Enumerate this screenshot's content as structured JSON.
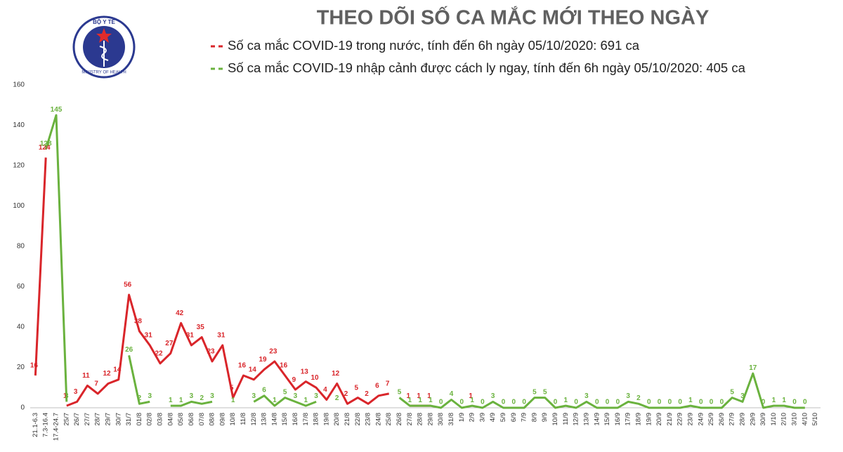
{
  "logo": {
    "top": "BỘ Y TẾ",
    "bottom": "MINISTRY OF HEALTH"
  },
  "chart_data": {
    "type": "line",
    "title": "THEO DÕI SỐ CA MẮC MỚI THEO NGÀY",
    "categories": [
      "21.1-6.3",
      "7.3-16.4",
      "17.4-24.7",
      "25/7",
      "26/7",
      "27/7",
      "28/7",
      "29/7",
      "30/7",
      "31/7",
      "01/8",
      "02/8",
      "03/8",
      "04/8",
      "05/8",
      "06/8",
      "07/8",
      "08/8",
      "09/8",
      "10/8",
      "11/8",
      "12/8",
      "13/8",
      "14/8",
      "15/8",
      "16/8",
      "17/8",
      "18/8",
      "19/8",
      "20/8",
      "21/8",
      "22/8",
      "23/8",
      "24/8",
      "25/8",
      "26/8",
      "27/8",
      "28/8",
      "29/8",
      "30/8",
      "31/8",
      "1/9",
      "2/9",
      "3/9",
      "4/9",
      "5/9",
      "6/9",
      "7/9",
      "8/9",
      "9/9",
      "10/9",
      "11/9",
      "12/9",
      "13/9",
      "14/9",
      "15/9",
      "16/9",
      "17/9",
      "18/9",
      "19/9",
      "20/9",
      "21/9",
      "22/9",
      "23/9",
      "24/9",
      "25/9",
      "26/9",
      "27/9",
      "28/9",
      "29/9",
      "30/9",
      "1/10",
      "2/10",
      "3/10",
      "4/10",
      "5/10"
    ],
    "series": [
      {
        "name": "Số ca mắc COVID-19 trong nước, tính đến 6h ngày 05/10/2020: 691 ca",
        "color": "#d9252a",
        "values": [
          16,
          124,
          null,
          1,
          3,
          11,
          7,
          12,
          14,
          56,
          38,
          31,
          22,
          27,
          42,
          31,
          35,
          23,
          31,
          5,
          16,
          14,
          19,
          23,
          16,
          9,
          13,
          10,
          4,
          12,
          2,
          5,
          2,
          6,
          7,
          null,
          1,
          1,
          1,
          null,
          null,
          null,
          1,
          null,
          null,
          null,
          null,
          null,
          null,
          null,
          null,
          null,
          null,
          null,
          null,
          null,
          null,
          null,
          null,
          null,
          null,
          null,
          null,
          null,
          null,
          null,
          null,
          null,
          null,
          null,
          null,
          null,
          null,
          null,
          null,
          null
        ]
      },
      {
        "name": "Số ca mắc COVID-19 nhập cảnh được cách ly ngay, tính đến 6h ngày 05/10/2020: 405 ca",
        "color": "#6ab23e",
        "values": [
          null,
          128,
          145,
          3,
          null,
          null,
          null,
          null,
          null,
          26,
          2,
          3,
          null,
          1,
          1,
          3,
          2,
          3,
          null,
          1,
          null,
          3,
          6,
          1,
          5,
          3,
          1,
          3,
          null,
          2,
          null,
          null,
          null,
          null,
          null,
          5,
          1,
          1,
          1,
          0,
          4,
          0,
          1,
          0,
          3,
          0,
          0,
          0,
          5,
          5,
          0,
          1,
          0,
          3,
          0,
          0,
          0,
          3,
          2,
          0,
          0,
          0,
          0,
          1,
          0,
          0,
          0,
          5,
          3,
          17,
          0,
          1,
          1,
          0,
          0,
          null
        ]
      }
    ],
    "ylim": [
      0,
      160
    ],
    "yticks": [
      0,
      20,
      40,
      60,
      80,
      100,
      120,
      140,
      160
    ],
    "grid": false
  }
}
